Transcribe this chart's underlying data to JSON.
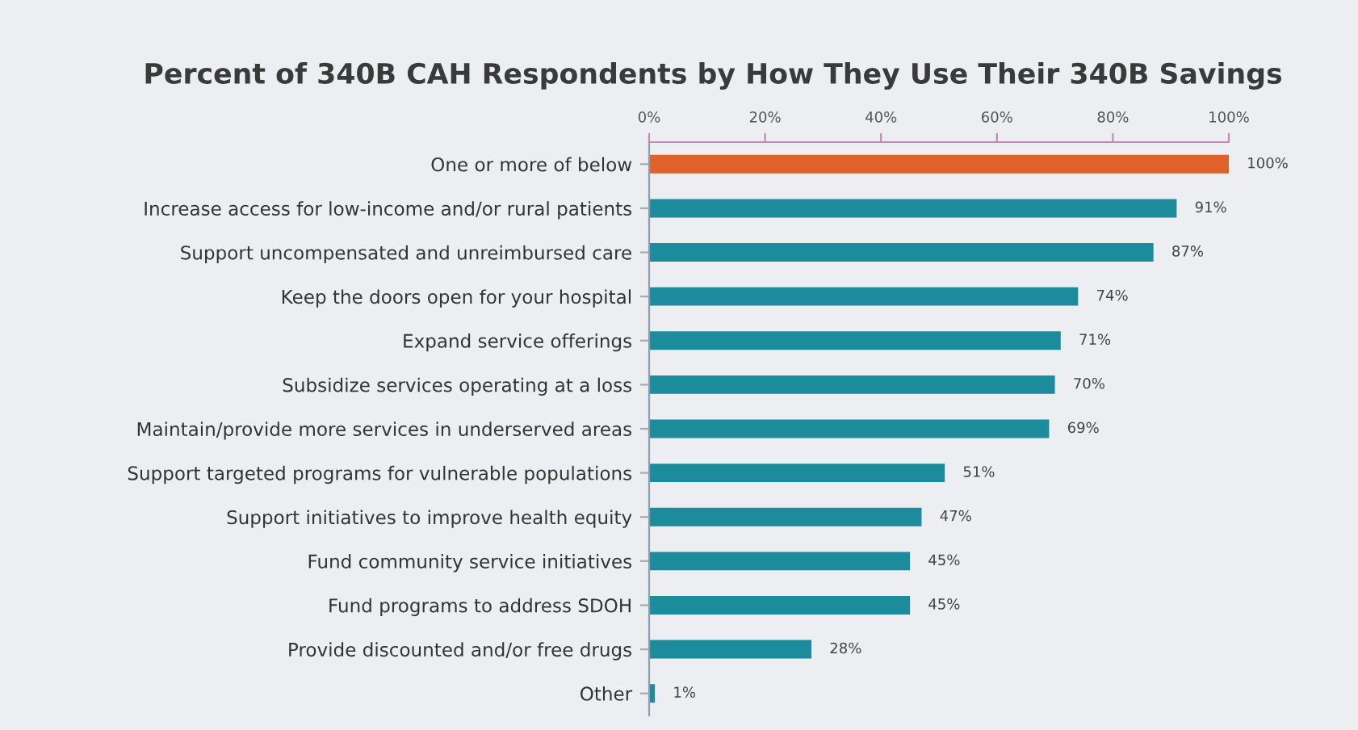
{
  "chart_data": {
    "type": "bar",
    "orientation": "horizontal",
    "title": "Percent of 340B CAH Respondents by How They Use Their 340B Savings",
    "categories": [
      "One or more of below",
      "Increase access for low-income and/or rural patients",
      "Support uncompensated and unreimbursed care",
      "Keep the doors open for your hospital",
      "Expand service offerings",
      "Subsidize services operating at a loss",
      "Maintain/provide more services in underserved areas",
      "Support targeted programs for vulnerable populations",
      "Support initiatives to improve health equity",
      "Fund community service initiatives",
      "Fund programs to address SDOH",
      "Provide discounted and/or free drugs",
      "Other"
    ],
    "values": [
      100,
      91,
      87,
      74,
      71,
      70,
      69,
      51,
      47,
      45,
      45,
      28,
      1
    ],
    "colors": [
      "#e0622a",
      "#1c8c9c",
      "#1c8c9c",
      "#1c8c9c",
      "#1c8c9c",
      "#1c8c9c",
      "#1c8c9c",
      "#1c8c9c",
      "#1c8c9c",
      "#1c8c9c",
      "#1c8c9c",
      "#1c8c9c",
      "#1c8c9c"
    ],
    "value_labels": [
      "100%",
      "91%",
      "87%",
      "74%",
      "71%",
      "70%",
      "69%",
      "51%",
      "47%",
      "45%",
      "45%",
      "28%",
      "1%"
    ],
    "xlim": [
      0,
      100
    ],
    "xticks": [
      {
        "value": 0,
        "label": "0%"
      },
      {
        "value": 20,
        "label": "20%"
      },
      {
        "value": 40,
        "label": "40%"
      },
      {
        "value": 60,
        "label": "60%"
      },
      {
        "value": 80,
        "label": "80%"
      },
      {
        "value": 100,
        "label": "100%"
      }
    ],
    "grid": false
  }
}
